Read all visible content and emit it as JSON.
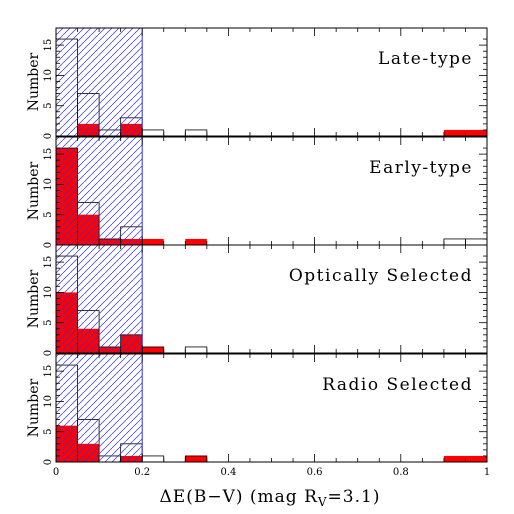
{
  "chart_data": {
    "type": "bar",
    "xlabel": "ΔE(B−V) (mag R",
    "xlabel_sub": "V",
    "xlabel_tail": "=3.1)",
    "ylabel": "Number",
    "xlim": [
      0,
      1
    ],
    "ylim": [
      0,
      17
    ],
    "x_ticks": [
      "0",
      "0.2",
      "0.4",
      "0.6",
      "0.8",
      "1"
    ],
    "y_ticks": [
      "0",
      "5",
      "10",
      "15"
    ],
    "bin_width": 0.05,
    "shaded_band": {
      "from": 0,
      "to": 0.2,
      "color": "#3333dd",
      "style": "hatched"
    },
    "colors": {
      "filled": "#ff0000",
      "outline": "#000000",
      "axis": "#000000"
    },
    "series_style": [
      {
        "style": "outline"
      },
      {
        "style": "filled"
      }
    ],
    "panels": [
      {
        "label": "Late-type",
        "outline": [
          [
            0,
            16
          ],
          [
            0.05,
            7
          ],
          [
            0.1,
            1
          ],
          [
            0.15,
            3
          ],
          [
            0.2,
            1
          ],
          [
            0.3,
            1
          ]
        ],
        "filled": [
          [
            0.05,
            2
          ],
          [
            0.15,
            2
          ],
          [
            0.9,
            1
          ],
          [
            0.95,
            1
          ]
        ]
      },
      {
        "label": "Early-type",
        "outline": [
          [
            0,
            16
          ],
          [
            0.05,
            7
          ],
          [
            0.1,
            1
          ],
          [
            0.15,
            3
          ],
          [
            0.9,
            1
          ],
          [
            0.95,
            1
          ]
        ],
        "filled": [
          [
            0,
            16
          ],
          [
            0.05,
            5
          ],
          [
            0.1,
            1
          ],
          [
            0.15,
            1
          ],
          [
            0.2,
            1
          ],
          [
            0.3,
            1
          ]
        ]
      },
      {
        "label": "Optically Selected",
        "outline": [
          [
            0,
            16
          ],
          [
            0.05,
            7
          ],
          [
            0.1,
            1
          ],
          [
            0.15,
            3
          ],
          [
            0.2,
            1
          ],
          [
            0.3,
            1
          ]
        ],
        "filled": [
          [
            0,
            10
          ],
          [
            0.05,
            4
          ],
          [
            0.1,
            1
          ],
          [
            0.15,
            3
          ],
          [
            0.2,
            1
          ]
        ]
      },
      {
        "label": "Radio Selected",
        "outline": [
          [
            0,
            16
          ],
          [
            0.05,
            7
          ],
          [
            0.1,
            1
          ],
          [
            0.15,
            3
          ],
          [
            0.2,
            1
          ],
          [
            0.3,
            1
          ]
        ],
        "filled": [
          [
            0,
            6
          ],
          [
            0.05,
            3
          ],
          [
            0.15,
            1
          ],
          [
            0.3,
            1
          ],
          [
            0.9,
            1
          ],
          [
            0.95,
            1
          ]
        ]
      }
    ]
  }
}
